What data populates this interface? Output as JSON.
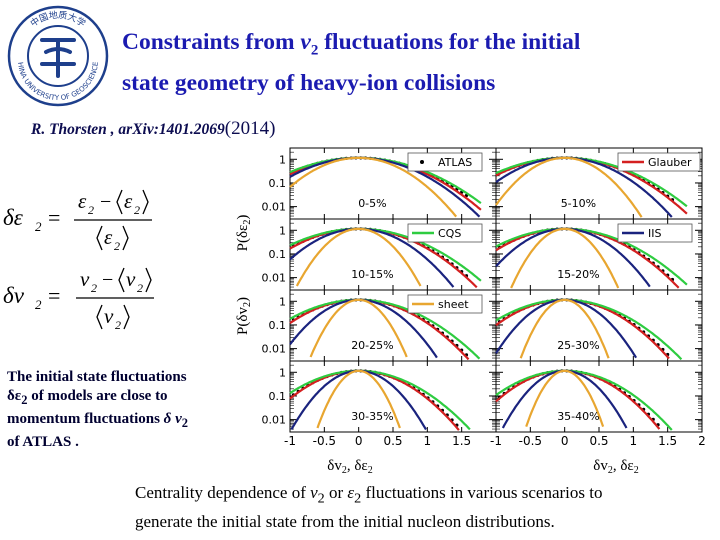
{
  "slide": {
    "logo_ring_top": "中国地质大学",
    "logo_ring_bottom": "CHINA UNIVERSITY OF GEOSCIENCES",
    "title_part1": "Constraints from ",
    "title_v": "v",
    "title_sub": "2",
    "title_part2": " fluctuations for the initial",
    "title_line2": "state geometry of heavy-ion collisions",
    "reference": "R. Thorsten , arXiv:1401.2069",
    "reference_year": "(2014)",
    "formula_eps": {
      "lhs": "δε",
      "lhs_sub": "2",
      "eq": "=",
      "num_a": "ε",
      "num_a_sub": "2",
      "minus": "−",
      "num_b": "ε",
      "num_b_sub": "2",
      "den": "ε",
      "den_sub": "2"
    },
    "formula_v": {
      "lhs": "δv",
      "lhs_sub": "2",
      "eq": "=",
      "num_a": "v",
      "num_a_sub": "2",
      "minus": "−",
      "num_b": "v",
      "num_b_sub": "2",
      "den": "v",
      "den_sub": "2"
    },
    "description": {
      "line1": "The initial state fluctuations",
      "line2_sym": "δε",
      "line2_sub": "2",
      "line2_rest": " of models are close to",
      "line3_text": "momentum fluctuations ",
      "line3_sym": "δ v",
      "line3_sub": "2",
      "line4": "of ATLAS ."
    },
    "caption": {
      "part1": "Centrality dependence of ",
      "v": "v",
      "v_sub": "2",
      "or": " or ",
      "eps": "ε",
      "eps_sub": "2",
      "part2": " fluctuations in various scenarios to",
      "line2": "generate the initial state from the initial nucleon distributions."
    }
  },
  "colors": {
    "title": "#1b1bb0",
    "logo": "#1e3f8c",
    "atlas": "#000000",
    "glauber": "#d42020",
    "cqs": "#2ecc40",
    "iis": "#1a237e",
    "sheet": "#e8a630"
  },
  "chart_data": {
    "type": "line",
    "panels": [
      "0-5%",
      "5-10%",
      "10-15%",
      "15-20%",
      "20-25%",
      "25-30%",
      "30-35%",
      "35-40%"
    ],
    "ylabel_top": "P(δε",
    "ylabel_top_sub": "2",
    "ylabel_top_end": ")",
    "ylabel_bottom": "P(δv",
    "ylabel_bottom_sub": "2",
    "ylabel_bottom_end": ")",
    "xlabel": "δv",
    "xlabel_sub1": "2",
    "xlabel_mid": ", δε",
    "xlabel_sub2": "2",
    "yticks": [
      "1",
      "0.1",
      "0.01"
    ],
    "xticks_left": [
      "-1",
      "-0.5",
      "0",
      "0.5",
      "1",
      "1.5"
    ],
    "xticks_right": [
      "-1",
      "-0.5",
      "0",
      "0.5",
      "1",
      "1.5",
      "2"
    ],
    "xlim": [
      -1,
      2
    ],
    "legend": [
      {
        "name": "ATLAS",
        "panel": 0,
        "style": "dot"
      },
      {
        "name": "Glauber",
        "panel": 1,
        "style": "line"
      },
      {
        "name": "CQS",
        "panel": 2,
        "style": "line"
      },
      {
        "name": "IIS",
        "panel": 3,
        "style": "line"
      },
      {
        "name": "sheet",
        "panel": 4,
        "style": "line"
      }
    ],
    "series_widths": [
      {
        "name": "ATLAS",
        "w": [
          0.58,
          0.55,
          0.52,
          0.5,
          0.48,
          0.46,
          0.44,
          0.42
        ]
      },
      {
        "name": "Glauber",
        "w": [
          0.56,
          0.54,
          0.51,
          0.49,
          0.47,
          0.45,
          0.43,
          0.41
        ]
      },
      {
        "name": "CQS",
        "w": [
          0.6,
          0.58,
          0.56,
          0.54,
          0.52,
          0.5,
          0.48,
          0.46
        ]
      },
      {
        "name": "IIS",
        "w": [
          0.52,
          0.46,
          0.41,
          0.37,
          0.34,
          0.31,
          0.29,
          0.27
        ]
      },
      {
        "name": "sheet",
        "w": [
          0.42,
          0.33,
          0.27,
          0.23,
          0.21,
          0.19,
          0.18,
          0.17
        ]
      }
    ]
  }
}
